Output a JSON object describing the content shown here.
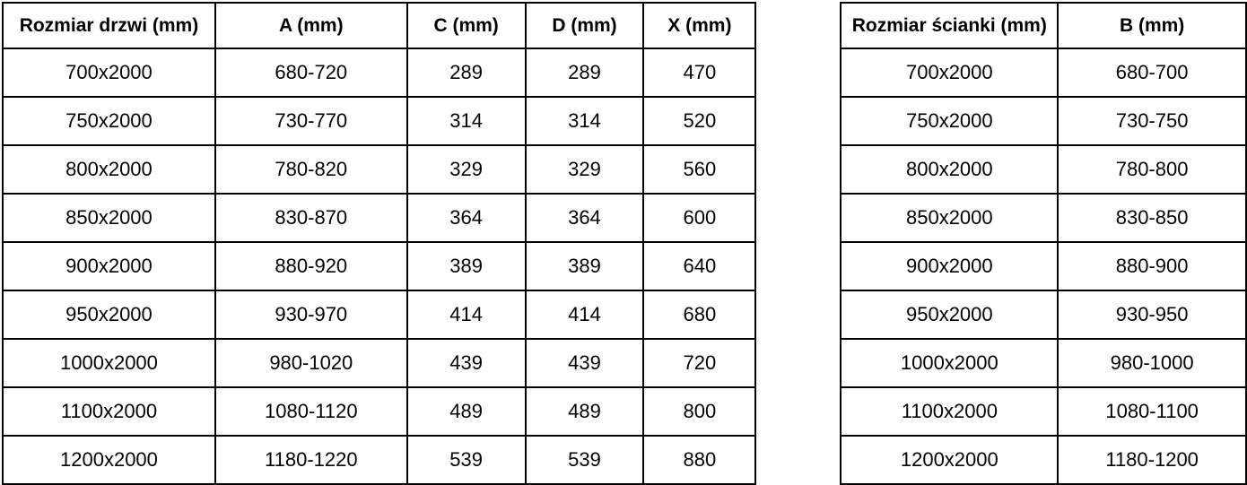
{
  "tables": [
    {
      "name": "door-sizes",
      "headers": [
        "Rozmiar drzwi (mm)",
        "A (mm)",
        "C (mm)",
        "D (mm)",
        "X (mm)"
      ],
      "rows": [
        [
          "700x2000",
          "680-720",
          "289",
          "289",
          "470"
        ],
        [
          "750x2000",
          "730-770",
          "314",
          "314",
          "520"
        ],
        [
          "800x2000",
          "780-820",
          "329",
          "329",
          "560"
        ],
        [
          "850x2000",
          "830-870",
          "364",
          "364",
          "600"
        ],
        [
          "900x2000",
          "880-920",
          "389",
          "389",
          "640"
        ],
        [
          "950x2000",
          "930-970",
          "414",
          "414",
          "680"
        ],
        [
          "1000x2000",
          "980-1020",
          "439",
          "439",
          "720"
        ],
        [
          "1100x2000",
          "1080-1120",
          "489",
          "489",
          "800"
        ],
        [
          "1200x2000",
          "1180-1220",
          "539",
          "539",
          "880"
        ]
      ]
    },
    {
      "name": "wall-sizes",
      "headers": [
        "Rozmiar ścianki (mm)",
        "B (mm)"
      ],
      "rows": [
        [
          "700x2000",
          "680-700"
        ],
        [
          "750x2000",
          "730-750"
        ],
        [
          "800x2000",
          "780-800"
        ],
        [
          "850x2000",
          "830-850"
        ],
        [
          "900x2000",
          "880-900"
        ],
        [
          "950x2000",
          "930-950"
        ],
        [
          "1000x2000",
          "980-1000"
        ],
        [
          "1100x2000",
          "1080-1100"
        ],
        [
          "1200x2000",
          "1180-1200"
        ]
      ]
    }
  ],
  "border_color": "#000000",
  "text_color": "#000000",
  "background_color": "#ffffff"
}
